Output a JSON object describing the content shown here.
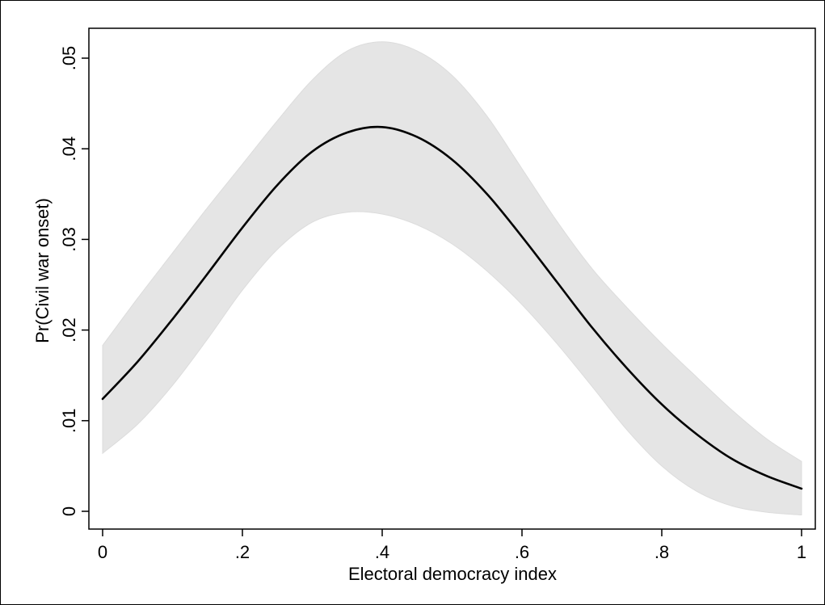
{
  "chart_data": {
    "type": "line",
    "title": "",
    "xlabel": "Electoral democracy index",
    "ylabel": "Pr(Civil war onset)",
    "xlim": [
      0,
      1
    ],
    "ylim": [
      0,
      0.05
    ],
    "grid": false,
    "legend": "none",
    "x_ticks": [
      {
        "value": 0,
        "label": "0"
      },
      {
        "value": 0.2,
        "label": ".2"
      },
      {
        "value": 0.4,
        "label": ".4"
      },
      {
        "value": 0.6,
        "label": ".6"
      },
      {
        "value": 0.8,
        "label": ".8"
      },
      {
        "value": 1,
        "label": "1"
      }
    ],
    "y_ticks": [
      {
        "value": 0,
        "label": "0"
      },
      {
        "value": 0.01,
        "label": ".01"
      },
      {
        "value": 0.02,
        "label": ".02"
      },
      {
        "value": 0.03,
        "label": ".03"
      },
      {
        "value": 0.04,
        "label": ".04"
      },
      {
        "value": 0.05,
        "label": ".05"
      }
    ],
    "x": [
      0,
      0.05,
      0.1,
      0.15,
      0.2,
      0.25,
      0.3,
      0.35,
      0.4,
      0.45,
      0.5,
      0.55,
      0.6,
      0.65,
      0.7,
      0.75,
      0.8,
      0.85,
      0.9,
      0.95,
      1.0
    ],
    "series": [
      {
        "values": [
          0.0124,
          0.0165,
          0.0212,
          0.0262,
          0.0313,
          0.036,
          0.0397,
          0.0418,
          0.0424,
          0.0413,
          0.0388,
          0.035,
          0.0303,
          0.0253,
          0.0203,
          0.0158,
          0.0118,
          0.0085,
          0.0058,
          0.0039,
          0.0025
        ],
        "ci_lower": [
          0.0064,
          0.0096,
          0.0139,
          0.019,
          0.0244,
          0.0289,
          0.0319,
          0.033,
          0.0328,
          0.0316,
          0.0295,
          0.0265,
          0.0228,
          0.0185,
          0.0138,
          0.009,
          0.005,
          0.0022,
          0.0006,
          -0.0001,
          -0.0004
        ],
        "ci_upper": [
          0.0183,
          0.0235,
          0.0285,
          0.0335,
          0.0383,
          0.0431,
          0.0476,
          0.0508,
          0.0518,
          0.0508,
          0.0481,
          0.0436,
          0.0378,
          0.032,
          0.0268,
          0.0225,
          0.0185,
          0.0148,
          0.0112,
          0.008,
          0.0055
        ],
        "line_color": "#000000",
        "band_color": "#e5e5e5"
      }
    ]
  }
}
